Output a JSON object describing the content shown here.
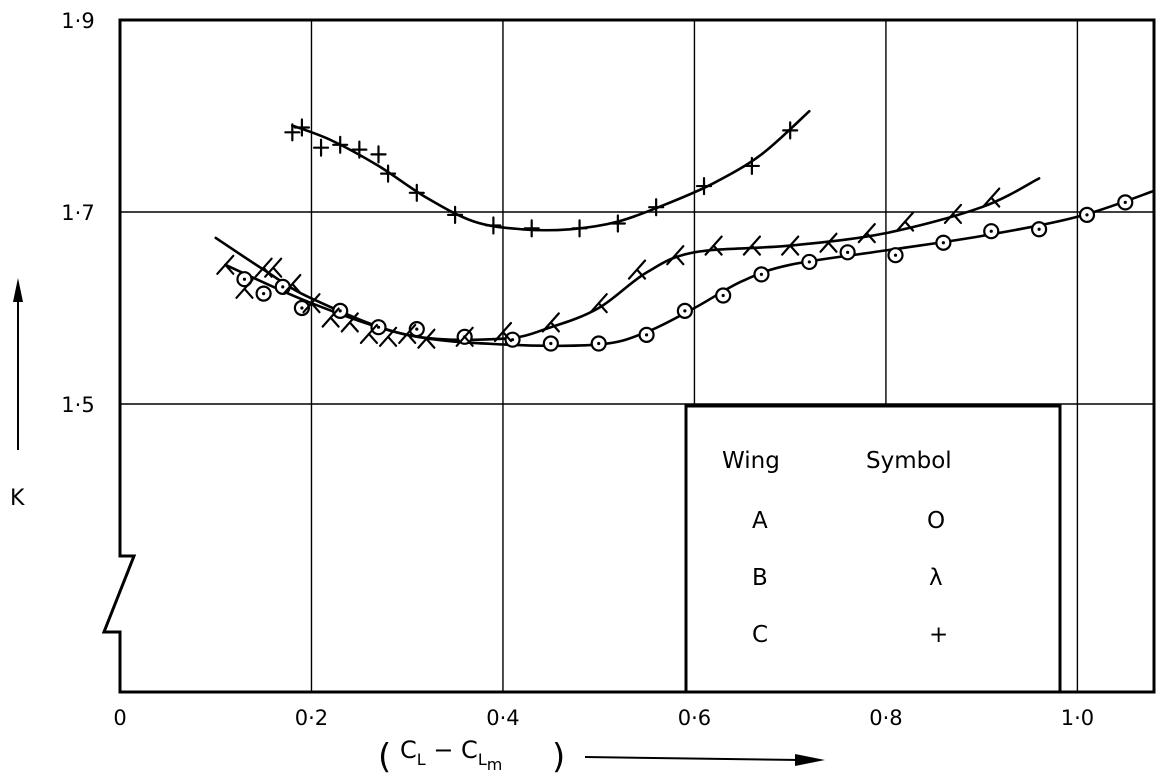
{
  "chart_data": {
    "type": "scatter",
    "title": "",
    "xlabel": {
      "open": "(",
      "main": "C",
      "sub1": "L",
      "dash": " − C",
      "sub2": "L",
      "sub3": "m",
      "close": ")"
    },
    "ylabel": "K",
    "xlim": [
      0,
      1.08
    ],
    "ylim": [
      1.2,
      1.9
    ],
    "x_ticks": [
      0,
      0.2,
      0.4,
      0.6,
      0.8,
      1.0
    ],
    "x_tick_labels": [
      "0",
      "0·2",
      "0·4",
      "0·6",
      "0·8",
      "1·0"
    ],
    "y_ticks": [
      1.5,
      1.7,
      1.9
    ],
    "y_tick_labels": [
      "1·5",
      "1·7",
      "1·9"
    ],
    "grid": true,
    "legend": {
      "position": "bottom-right",
      "header_wing": "Wing",
      "header_symbol": "Symbol",
      "rows": [
        {
          "wing": "A",
          "symbol": "O",
          "marker": "circle"
        },
        {
          "wing": "B",
          "symbol": "λ",
          "marker": "lambda"
        },
        {
          "wing": "C",
          "symbol": "+",
          "marker": "plus"
        }
      ]
    },
    "series": [
      {
        "wing": "A",
        "marker": "circle",
        "points": [
          [
            0.13,
            1.63
          ],
          [
            0.15,
            1.615
          ],
          [
            0.17,
            1.622
          ],
          [
            0.19,
            1.6
          ],
          [
            0.23,
            1.597
          ],
          [
            0.27,
            1.58
          ],
          [
            0.31,
            1.578
          ],
          [
            0.36,
            1.57
          ],
          [
            0.41,
            1.567
          ],
          [
            0.45,
            1.563
          ],
          [
            0.5,
            1.563
          ],
          [
            0.55,
            1.572
          ],
          [
            0.59,
            1.597
          ],
          [
            0.63,
            1.613
          ],
          [
            0.67,
            1.635
          ],
          [
            0.72,
            1.648
          ],
          [
            0.76,
            1.658
          ],
          [
            0.81,
            1.655
          ],
          [
            0.86,
            1.668
          ],
          [
            0.91,
            1.68
          ],
          [
            0.96,
            1.682
          ],
          [
            1.01,
            1.697
          ],
          [
            1.05,
            1.71
          ]
        ],
        "fit": [
          [
            0.11,
            1.645
          ],
          [
            0.2,
            1.605
          ],
          [
            0.3,
            1.572
          ],
          [
            0.4,
            1.562
          ],
          [
            0.5,
            1.562
          ],
          [
            0.55,
            1.575
          ],
          [
            0.6,
            1.6
          ],
          [
            0.65,
            1.628
          ],
          [
            0.7,
            1.645
          ],
          [
            0.8,
            1.66
          ],
          [
            0.9,
            1.675
          ],
          [
            1.0,
            1.695
          ],
          [
            1.08,
            1.722
          ]
        ]
      },
      {
        "wing": "B",
        "marker": "lambda",
        "points": [
          [
            0.11,
            1.645
          ],
          [
            0.13,
            1.62
          ],
          [
            0.15,
            1.642
          ],
          [
            0.16,
            1.642
          ],
          [
            0.18,
            1.625
          ],
          [
            0.2,
            1.605
          ],
          [
            0.22,
            1.59
          ],
          [
            0.24,
            1.585
          ],
          [
            0.26,
            1.573
          ],
          [
            0.28,
            1.57
          ],
          [
            0.3,
            1.573
          ],
          [
            0.32,
            1.568
          ],
          [
            0.36,
            1.57
          ],
          [
            0.4,
            1.575
          ],
          [
            0.45,
            1.585
          ],
          [
            0.5,
            1.605
          ],
          [
            0.54,
            1.64
          ],
          [
            0.58,
            1.655
          ],
          [
            0.62,
            1.665
          ],
          [
            0.66,
            1.665
          ],
          [
            0.7,
            1.665
          ],
          [
            0.74,
            1.668
          ],
          [
            0.78,
            1.678
          ],
          [
            0.82,
            1.69
          ],
          [
            0.87,
            1.698
          ],
          [
            0.91,
            1.715
          ]
        ],
        "fit": [
          [
            0.1,
            1.673
          ],
          [
            0.15,
            1.64
          ],
          [
            0.2,
            1.61
          ],
          [
            0.3,
            1.572
          ],
          [
            0.4,
            1.568
          ],
          [
            0.45,
            1.58
          ],
          [
            0.5,
            1.6
          ],
          [
            0.55,
            1.637
          ],
          [
            0.6,
            1.658
          ],
          [
            0.7,
            1.665
          ],
          [
            0.8,
            1.678
          ],
          [
            0.9,
            1.705
          ],
          [
            0.96,
            1.735
          ]
        ]
      },
      {
        "wing": "C",
        "marker": "plus",
        "points": [
          [
            0.18,
            1.783
          ],
          [
            0.19,
            1.788
          ],
          [
            0.21,
            1.767
          ],
          [
            0.23,
            1.77
          ],
          [
            0.25,
            1.765
          ],
          [
            0.27,
            1.76
          ],
          [
            0.28,
            1.74
          ],
          [
            0.31,
            1.72
          ],
          [
            0.35,
            1.697
          ],
          [
            0.39,
            1.686
          ],
          [
            0.43,
            1.683
          ],
          [
            0.48,
            1.683
          ],
          [
            0.52,
            1.688
          ],
          [
            0.56,
            1.705
          ],
          [
            0.61,
            1.727
          ],
          [
            0.66,
            1.748
          ],
          [
            0.7,
            1.785
          ]
        ],
        "fit": [
          [
            0.18,
            1.79
          ],
          [
            0.22,
            1.775
          ],
          [
            0.27,
            1.748
          ],
          [
            0.32,
            1.715
          ],
          [
            0.37,
            1.69
          ],
          [
            0.42,
            1.682
          ],
          [
            0.47,
            1.682
          ],
          [
            0.52,
            1.69
          ],
          [
            0.57,
            1.708
          ],
          [
            0.62,
            1.73
          ],
          [
            0.67,
            1.76
          ],
          [
            0.72,
            1.805
          ]
        ]
      }
    ]
  }
}
